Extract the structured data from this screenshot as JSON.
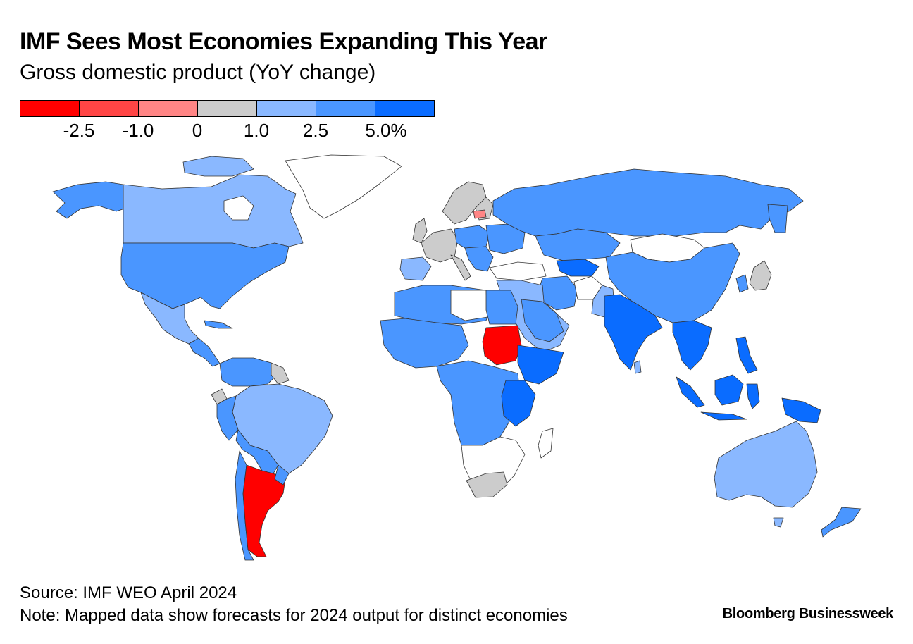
{
  "header": {
    "title": "IMF Sees Most Economies Expanding This Year",
    "subtitle": "Gross domestic product (YoY change)"
  },
  "legend": {
    "colors": [
      "#ff0000",
      "#ff4545",
      "#ff8585",
      "#cccccc",
      "#8ab8ff",
      "#4a96ff",
      "#0a6cff"
    ],
    "ticks": [
      "-2.5",
      "-1.0",
      "0",
      "1.0",
      "2.5",
      "5.0%"
    ]
  },
  "map": {
    "colors": {
      "no_data": "#ffffff",
      "neg_high": "#ff0000",
      "neg_mid": "#ff4545",
      "neg_low": "#ff8585",
      "flat": "#cccccc",
      "low": "#8ab8ff",
      "mid": "#4a96ff",
      "high": "#0a6cff",
      "border": "#333333"
    }
  },
  "footer": {
    "source": "Source: IMF WEO April 2024",
    "note": "Note: Mapped data show forecasts for 2024 output for distinct economies",
    "brand": "Bloomberg Businessweek"
  }
}
